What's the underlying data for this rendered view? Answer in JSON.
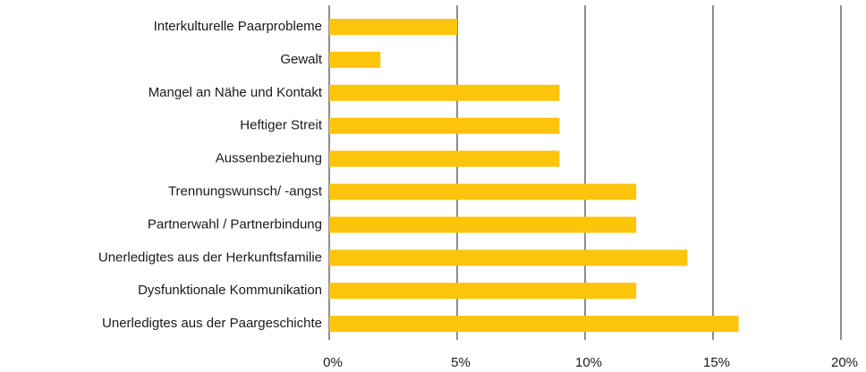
{
  "chart_data": {
    "type": "hbar",
    "categories": [
      "Interkulturelle Paarprobleme",
      "Gewalt",
      "Mangel an Nähe und Kontakt",
      "Heftiger Streit",
      "Aussenbeziehung",
      "Trennungswunsch/ -angst",
      "Partnerwahl / Partnerbindung",
      "Unerledigtes aus der Herkunftsfamilie",
      "Dysfunktionale Kommunikation",
      "Unerledigtes aus der Paargeschichte"
    ],
    "values": [
      5,
      2,
      9,
      9,
      9,
      12,
      12,
      14,
      12,
      16
    ],
    "color": "#fcc40a",
    "xlim": [
      0,
      20
    ],
    "xticks": [
      {
        "value": 0,
        "label": "0%"
      },
      {
        "value": 5,
        "label": "5%"
      },
      {
        "value": 10,
        "label": "10%"
      },
      {
        "value": 15,
        "label": "15%"
      },
      {
        "value": 20,
        "label": "20%"
      }
    ],
    "grid": true
  }
}
